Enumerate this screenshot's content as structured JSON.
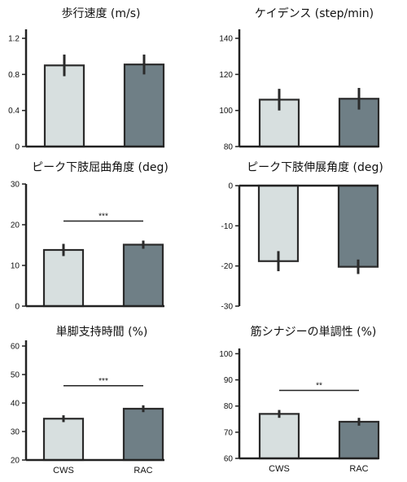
{
  "colors": {
    "cws": "#d7dfdf",
    "rac": "#6f7f86",
    "edge": "#2a2a2a",
    "error": "#2a2a2a"
  },
  "chart_data": [
    {
      "type": "bar",
      "title": "歩行速度 (m/s)",
      "categories": [
        "CWS",
        "RAC"
      ],
      "values": [
        0.9,
        0.91
      ],
      "errors": [
        0.12,
        0.11
      ],
      "ylim": [
        0,
        1.3
      ],
      "yticks": [
        0,
        0.4,
        0.8,
        1.2
      ],
      "ytick_labels": [
        "0",
        "0.4",
        "0.8",
        "1.2"
      ],
      "show_category_labels": false,
      "significance": ""
    },
    {
      "type": "bar",
      "title": "ケイデンス (step/min)",
      "categories": [
        "CWS",
        "RAC"
      ],
      "values": [
        106,
        106.5
      ],
      "errors": [
        6,
        6
      ],
      "ylim": [
        80,
        145
      ],
      "yticks": [
        80,
        100,
        120,
        140
      ],
      "ytick_labels": [
        "80",
        "100",
        "120",
        "140"
      ],
      "show_category_labels": false,
      "significance": ""
    },
    {
      "type": "bar",
      "title": "ピーク下肢屈曲角度 (deg)",
      "categories": [
        "CWS",
        "RAC"
      ],
      "values": [
        13.8,
        15.1
      ],
      "errors": [
        1.5,
        1.0
      ],
      "ylim": [
        0,
        30
      ],
      "yticks": [
        0,
        10,
        20,
        30
      ],
      "ytick_labels": [
        "0",
        "10",
        "20",
        "30"
      ],
      "show_category_labels": false,
      "significance": "***"
    },
    {
      "type": "bar",
      "title": "ピーク下肢伸展角度 (deg)",
      "categories": [
        "CWS",
        "RAC"
      ],
      "values": [
        -18.8,
        -20.2
      ],
      "errors": [
        2.5,
        1.8
      ],
      "ylim": [
        -30,
        0
      ],
      "yticks": [
        -30,
        -20,
        -10,
        0
      ],
      "ytick_labels": [
        "-30",
        "-20",
        "-10",
        "0"
      ],
      "show_category_labels": false,
      "significance": ""
    },
    {
      "type": "bar",
      "title": "単脚支持時間 (%)",
      "categories": [
        "CWS",
        "RAC"
      ],
      "values": [
        34.5,
        38.0
      ],
      "errors": [
        1.2,
        1.2
      ],
      "ylim": [
        20,
        62
      ],
      "yticks": [
        20,
        30,
        40,
        50,
        60
      ],
      "ytick_labels": [
        "20",
        "30",
        "40",
        "50",
        "60"
      ],
      "show_category_labels": true,
      "significance": "***"
    },
    {
      "type": "bar",
      "title": "筋シナジーの単調性 (%)",
      "categories": [
        "CWS",
        "RAC"
      ],
      "values": [
        77,
        74
      ],
      "errors": [
        1.5,
        1.5
      ],
      "ylim": [
        60,
        102
      ],
      "yticks": [
        60,
        70,
        80,
        90,
        100
      ],
      "ytick_labels": [
        "60",
        "70",
        "80",
        "90",
        "100"
      ],
      "show_category_labels": true,
      "significance": "**"
    }
  ]
}
